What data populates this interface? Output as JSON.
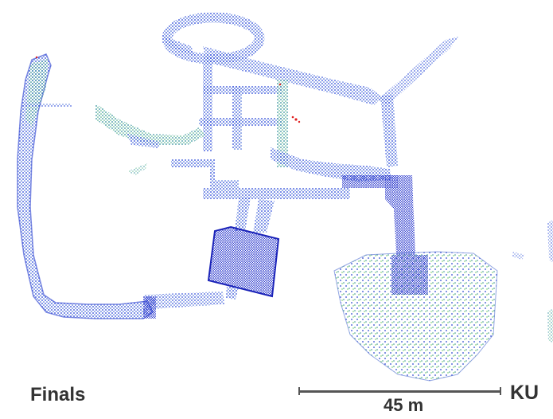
{
  "labels": {
    "left": "Finals",
    "right": "KU"
  },
  "scale": {
    "text": "45 m"
  },
  "colors": {
    "point_dark": "#1f2fd0",
    "point_mid": "#2d6bd6",
    "point_teal": "#2e9b8e",
    "point_green": "#4fc34a",
    "point_red": "#e02020",
    "label": "#333333",
    "scale_bar": "#555555"
  }
}
